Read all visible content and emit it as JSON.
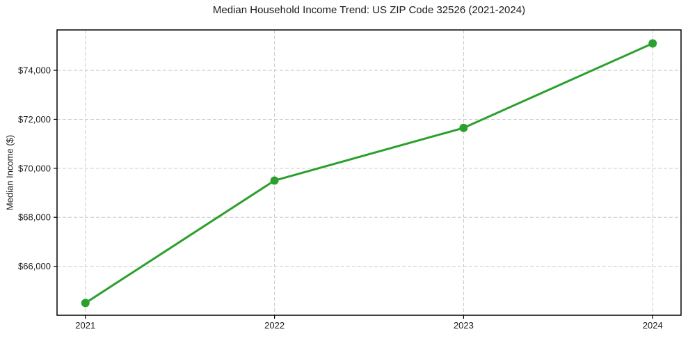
{
  "chart_data": {
    "type": "line",
    "title": "Median Household Income Trend: US ZIP Code 32526 (2021-2024)",
    "xlabel": "",
    "ylabel": "Median Income ($)",
    "x": [
      2021,
      2022,
      2023,
      2024
    ],
    "values": [
      64500,
      69500,
      71650,
      75100
    ],
    "x_ticks": [
      2021,
      2022,
      2023,
      2024
    ],
    "x_tick_labels": [
      "2021",
      "2022",
      "2023",
      "2024"
    ],
    "y_ticks": [
      66000,
      68000,
      70000,
      72000,
      74000
    ],
    "y_tick_labels": [
      "$66,000",
      "$68,000",
      "$70,000",
      "$72,000",
      "$74,000"
    ],
    "xlim": [
      2020.85,
      2024.15
    ],
    "ylim": [
      64000,
      75650
    ],
    "grid": true,
    "grid_style": "dashed",
    "legend": null,
    "colors": {
      "line": "#2ca02c",
      "marker": "#2ca02c",
      "grid": "#c9c9c9",
      "spine": "#000000",
      "text": "#1a1a1a",
      "background": "#ffffff"
    }
  }
}
